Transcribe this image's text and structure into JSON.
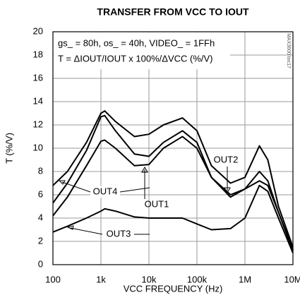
{
  "chart_data": {
    "type": "line",
    "title": "TRANSFER FROM VCC TO IOUT",
    "x_label": "VCC FREQUENCY (Hz)",
    "y_label": "T (%/V)",
    "annotations": [
      "gs_ = 80h, os_ = 40h, VIDEO_ = 1FFh",
      "T = ΔIOUT/IOUT x 100%/ΔVCC (%/V)",
      "MAX3600 toc17"
    ],
    "x_scale": "log",
    "x": [
      100,
      200,
      500,
      1000,
      1200,
      2000,
      5000,
      10000,
      20000,
      50000,
      100000,
      200000,
      500000,
      1000000,
      2000000,
      3000000,
      5000000,
      10000000
    ],
    "series": [
      {
        "name": "OUT4",
        "color": "#000000",
        "values": [
          6.8,
          8,
          10.5,
          13,
          13.2,
          12.3,
          11,
          11.2,
          12,
          12.6,
          11.5,
          8.5,
          7,
          7.5,
          10.2,
          9,
          5,
          1.5
        ]
      },
      {
        "name": "OUT2",
        "color": "#000000",
        "values": [
          5.3,
          7,
          9.8,
          12.7,
          12.8,
          11.5,
          9.5,
          9.3,
          10.5,
          11.5,
          10.5,
          7.5,
          5.8,
          6.5,
          8,
          7.2,
          4.5,
          1.3
        ]
      },
      {
        "name": "OUT1",
        "color": "#000000",
        "values": [
          4.2,
          5.8,
          8.5,
          10.6,
          10.7,
          10,
          8.5,
          8.6,
          10,
          11,
          10,
          7.5,
          6,
          6.5,
          7.2,
          6.8,
          4.5,
          1.2
        ]
      },
      {
        "name": "OUT3",
        "color": "#000000",
        "values": [
          2.8,
          3.3,
          4,
          4.6,
          4.8,
          4.6,
          4.1,
          4,
          4,
          4,
          3.5,
          3,
          3.1,
          4,
          6.8,
          6.3,
          4,
          1
        ]
      }
    ],
    "xlim": [
      100,
      10000000
    ],
    "xticks": [
      100,
      {
        "value": 1000,
        "label": "1k"
      },
      {
        "value": 10000,
        "label": "10k"
      },
      {
        "value": 100000,
        "label": "100k"
      },
      {
        "value": 1000000,
        "label": "1M"
      },
      {
        "value": 10000000,
        "label": "10M"
      }
    ],
    "ylim": [
      0,
      20
    ],
    "yticks": [
      0,
      2,
      4,
      6,
      8,
      10,
      12,
      14,
      16,
      18,
      20
    ],
    "grid": true
  }
}
